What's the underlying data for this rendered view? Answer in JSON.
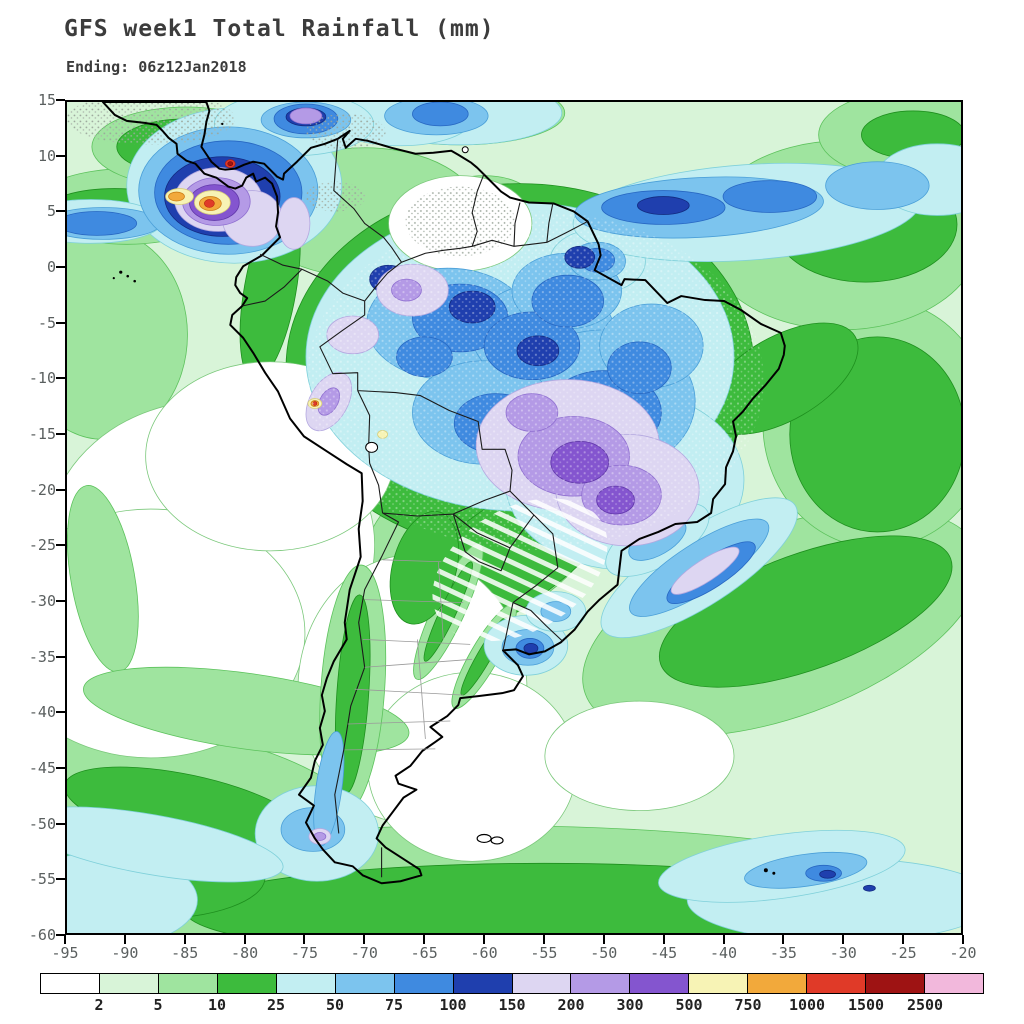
{
  "header": {
    "title": "GFS week1 Total Rainfall (mm)",
    "subtitle": "Ending: 06z12Jan2018"
  },
  "map": {
    "x_ticks": [
      "-95",
      "-90",
      "-85",
      "-80",
      "-75",
      "-70",
      "-65",
      "-60",
      "-55",
      "-50",
      "-45",
      "-40",
      "-35",
      "-30",
      "-25",
      "-20"
    ],
    "y_ticks": [
      "15",
      "10",
      "5",
      "0",
      "-5",
      "-10",
      "-15",
      "-20",
      "-25",
      "-30",
      "-35",
      "-40",
      "-45",
      "-50",
      "-55",
      "-60"
    ]
  },
  "legend": {
    "values": [
      "2",
      "5",
      "10",
      "25",
      "50",
      "75",
      "100",
      "150",
      "200",
      "300",
      "500",
      "750",
      "1000",
      "1500",
      "2500"
    ],
    "colors": [
      "#ffffff",
      "#d8f4d8",
      "#9fe49f",
      "#3dbb3d",
      "#c2eef2",
      "#7cc4ee",
      "#3f8ae0",
      "#1f3fae",
      "#ddd6f2",
      "#b49ae6",
      "#8455cf",
      "#f7f3b5",
      "#f2a93b",
      "#e03a28",
      "#9e1313",
      "#f2b8dc"
    ]
  },
  "chart_data": {
    "type": "filled-contour-map",
    "title": "GFS week1 Total Rainfall (mm)",
    "subtitle": "Ending: 06z12Jan2018",
    "variable": "total rainfall (mm)",
    "lon_range": [
      -95,
      -20
    ],
    "lat_range": [
      -60,
      15
    ],
    "contour_levels_mm": [
      2,
      5,
      10,
      25,
      50,
      75,
      100,
      150,
      200,
      300,
      500,
      750,
      1000,
      1500,
      2500
    ],
    "palette": [
      "#ffffff",
      "#d8f4d8",
      "#9fe49f",
      "#3dbb3d",
      "#c2eef2",
      "#7cc4ee",
      "#3f8ae0",
      "#1f3fae",
      "#ddd6f2",
      "#b49ae6",
      "#8455cf",
      "#f7f3b5",
      "#f2a93b",
      "#e03a28",
      "#9e1313",
      "#f2b8dc"
    ],
    "notable_features": [
      "extreme maximum (500-2500 mm) near Panama / NW Colombia",
      "broad 25-150 mm over Amazon basin",
      "150-500 mm core over central Brazil",
      "ITCZ band 25-100 mm across tropical Atlantic near 5N",
      "dry (<2 mm) SE Pacific subtropical high and central Argentina",
      "rain band 25-200 mm off SE Brazil coast"
    ]
  }
}
